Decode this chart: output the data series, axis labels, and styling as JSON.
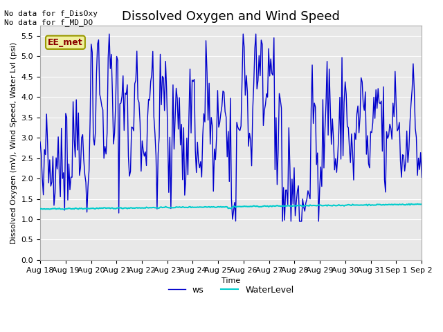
{
  "title": "Dissolved Oxygen and Wind Speed",
  "xlabel": "Time",
  "ylabel": "Dissolved Oxygen (mV), Wind Speed, Water Lvl (psi)",
  "ylim": [
    0.0,
    5.75
  ],
  "yticks": [
    0.0,
    0.5,
    1.0,
    1.5,
    2.0,
    2.5,
    3.0,
    3.5,
    4.0,
    4.5,
    5.0,
    5.5
  ],
  "bg_color": "#ffffff",
  "plot_bg_color": "#e8e8e8",
  "ws_color": "#0000cc",
  "wl_color": "#00cccc",
  "ws_linewidth": 1.0,
  "wl_linewidth": 1.5,
  "ws_label": "ws",
  "wl_label": "WaterLevel",
  "annotation_text": "No data for f_DisOxy\nNo data for f_MD_DO",
  "ee_met_text": "EE_met",
  "title_fontsize": 13,
  "axis_fontsize": 8,
  "tick_fontsize": 8,
  "legend_fontsize": 9,
  "xtick_labels": [
    "Aug 18",
    "Aug 19",
    "Aug 20",
    "Aug 21",
    "Aug 22",
    "Aug 23",
    "Aug 24",
    "Aug 25",
    "Aug 26",
    "Aug 27",
    "Aug 28",
    "Aug 29",
    "Aug 30",
    "Aug 31",
    "Sep 1",
    "Sep 2"
  ]
}
